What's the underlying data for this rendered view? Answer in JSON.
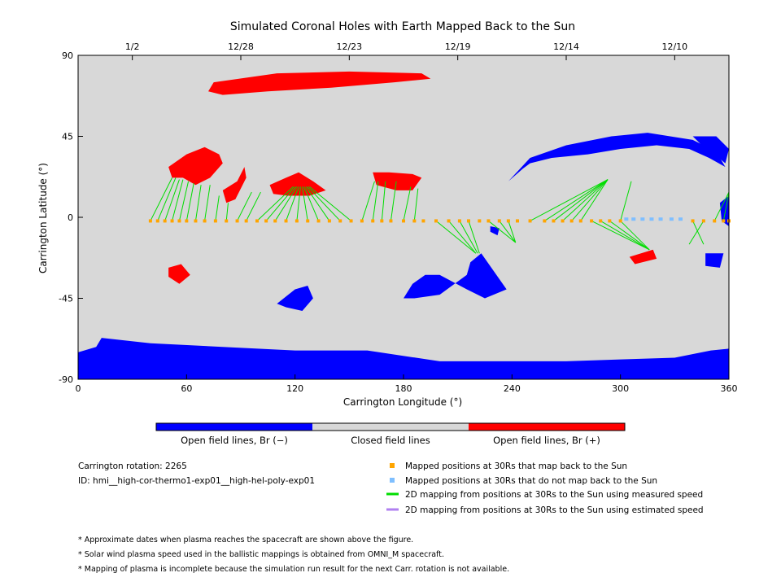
{
  "chart_data": {
    "type": "map",
    "title": "Simulated Coronal Holes with Earth Mapped Back to the Sun",
    "xlabel": "Carrington Longitude (°)",
    "ylabel": "Carrington Latitude (°)",
    "xlim": [
      0,
      360
    ],
    "ylim": [
      -90,
      90
    ],
    "x_ticks": [
      0,
      60,
      120,
      180,
      240,
      300,
      360
    ],
    "y_ticks": [
      -90,
      -45,
      0,
      45,
      90
    ],
    "top_axis_dates": [
      {
        "label": "1/2",
        "lon": 30
      },
      {
        "label": "12/28",
        "lon": 90
      },
      {
        "label": "12/23",
        "lon": 150
      },
      {
        "label": "12/19",
        "lon": 210
      },
      {
        "label": "12/14",
        "lon": 270
      },
      {
        "label": "12/10",
        "lon": 330
      }
    ],
    "colors": {
      "open_negative": "#0000ff",
      "closed": "#d8d8d8",
      "open_positive": "#ff0000",
      "mapped": "#ffa500",
      "not_mapped": "#7fbfff",
      "measured": "#00dd00",
      "estimated": "#b080f0"
    },
    "colorbar_labels": [
      "Open field lines, Br (−)",
      "Closed field lines",
      "Open field lines, Br (+)"
    ],
    "regions": {
      "positive": [
        [
          [
            75,
            75
          ],
          [
            110,
            80
          ],
          [
            150,
            81
          ],
          [
            190,
            80
          ],
          [
            195,
            77
          ],
          [
            175,
            75
          ],
          [
            140,
            72
          ],
          [
            105,
            70
          ],
          [
            80,
            68
          ],
          [
            72,
            70
          ]
        ],
        [
          [
            50,
            28
          ],
          [
            60,
            35
          ],
          [
            70,
            39
          ],
          [
            78,
            35
          ],
          [
            80,
            30
          ],
          [
            73,
            22
          ],
          [
            65,
            18
          ],
          [
            58,
            22
          ],
          [
            52,
            22
          ]
        ],
        [
          [
            80,
            15
          ],
          [
            88,
            20
          ],
          [
            92,
            28
          ],
          [
            93,
            22
          ],
          [
            87,
            10
          ],
          [
            82,
            8
          ]
        ],
        [
          [
            106,
            18
          ],
          [
            115,
            22
          ],
          [
            122,
            25
          ],
          [
            130,
            20
          ],
          [
            137,
            15
          ],
          [
            128,
            12
          ],
          [
            116,
            12
          ],
          [
            108,
            13
          ]
        ],
        [
          [
            163,
            25
          ],
          [
            172,
            25
          ],
          [
            185,
            24
          ],
          [
            190,
            22
          ],
          [
            185,
            15
          ],
          [
            176,
            15
          ],
          [
            165,
            18
          ]
        ],
        [
          [
            50,
            -28
          ],
          [
            57,
            -26
          ],
          [
            62,
            -32
          ],
          [
            56,
            -37
          ],
          [
            50,
            -33
          ]
        ],
        [
          [
            305,
            -22
          ],
          [
            318,
            -18
          ],
          [
            320,
            -23
          ],
          [
            308,
            -26
          ]
        ]
      ],
      "negative": [
        [
          [
            0,
            -75
          ],
          [
            10,
            -72
          ],
          [
            13,
            -67
          ],
          [
            40,
            -70
          ],
          [
            80,
            -72
          ],
          [
            120,
            -74
          ],
          [
            160,
            -74
          ],
          [
            200,
            -80
          ],
          [
            240,
            -80
          ],
          [
            270,
            -80
          ],
          [
            300,
            -79
          ],
          [
            330,
            -78
          ],
          [
            350,
            -74
          ],
          [
            360,
            -73
          ],
          [
            360,
            -90
          ],
          [
            0,
            -90
          ]
        ],
        [
          [
            180,
            -45
          ],
          [
            185,
            -37
          ],
          [
            192,
            -32
          ],
          [
            200,
            -32
          ],
          [
            215,
            -40
          ],
          [
            225,
            -45
          ],
          [
            237,
            -40
          ],
          [
            223,
            -20
          ],
          [
            217,
            -25
          ],
          [
            215,
            -32
          ],
          [
            200,
            -43
          ],
          [
            186,
            -45
          ]
        ],
        [
          [
            120,
            -40
          ],
          [
            127,
            -38
          ],
          [
            130,
            -45
          ],
          [
            124,
            -52
          ],
          [
            115,
            -50
          ],
          [
            110,
            -48
          ]
        ],
        [
          [
            238,
            20
          ],
          [
            250,
            33
          ],
          [
            270,
            40
          ],
          [
            295,
            45
          ],
          [
            315,
            47
          ],
          [
            340,
            43
          ],
          [
            350,
            38
          ],
          [
            355,
            33
          ],
          [
            358,
            28
          ],
          [
            349,
            33
          ],
          [
            338,
            38
          ],
          [
            320,
            40
          ],
          [
            300,
            38
          ],
          [
            282,
            35
          ],
          [
            262,
            33
          ],
          [
            250,
            30
          ],
          [
            246,
            27
          ]
        ],
        [
          [
            340,
            45
          ],
          [
            353,
            45
          ],
          [
            360,
            38
          ],
          [
            358,
            30
          ],
          [
            352,
            35
          ],
          [
            345,
            40
          ]
        ],
        [
          [
            347,
            -20
          ],
          [
            357,
            -20
          ],
          [
            355,
            -28
          ],
          [
            347,
            -27
          ]
        ],
        [
          [
            355,
            8
          ],
          [
            360,
            12
          ],
          [
            360,
            -5
          ],
          [
            356,
            -2
          ]
        ],
        [
          [
            228,
            -5
          ],
          [
            233,
            -6
          ],
          [
            232,
            -10
          ],
          [
            228,
            -8
          ]
        ]
      ]
    },
    "mapped_points": {
      "lat": -2,
      "lon": [
        40,
        44,
        48,
        52,
        56,
        60,
        65,
        70,
        76,
        82,
        88,
        93,
        99,
        104,
        109,
        115,
        121,
        127,
        133,
        139,
        145,
        151,
        157,
        163,
        168,
        173,
        180,
        186,
        191,
        198,
        205,
        211,
        216,
        222,
        227,
        233,
        238,
        243,
        250,
        258,
        263,
        268,
        273,
        278,
        284,
        289,
        294,
        300,
        340,
        346,
        352,
        357,
        360
      ]
    },
    "unmapped_points": {
      "lat": -1,
      "lon": [
        303,
        307,
        312,
        317,
        322,
        328,
        333
      ]
    },
    "measured_speed_lines": [
      {
        "from": [
          40,
          -2
        ],
        "to": [
          52,
          22
        ]
      },
      {
        "from": [
          44,
          -2
        ],
        "to": [
          54,
          22
        ]
      },
      {
        "from": [
          48,
          -2
        ],
        "to": [
          56,
          21
        ]
      },
      {
        "from": [
          52,
          -2
        ],
        "to": [
          58,
          21
        ]
      },
      {
        "from": [
          56,
          -2
        ],
        "to": [
          61,
          20
        ]
      },
      {
        "from": [
          60,
          -2
        ],
        "to": [
          64,
          19
        ]
      },
      {
        "from": [
          65,
          -2
        ],
        "to": [
          68,
          18
        ]
      },
      {
        "from": [
          70,
          -2
        ],
        "to": [
          73,
          18
        ]
      },
      {
        "from": [
          76,
          -2
        ],
        "to": [
          78,
          12
        ]
      },
      {
        "from": [
          82,
          -2
        ],
        "to": [
          83,
          8
        ]
      },
      {
        "from": [
          88,
          -2
        ],
        "to": [
          96,
          14
        ]
      },
      {
        "from": [
          93,
          -2
        ],
        "to": [
          101,
          14
        ]
      },
      {
        "from": [
          99,
          -2
        ],
        "to": [
          119,
          17
        ]
      },
      {
        "from": [
          104,
          -2
        ],
        "to": [
          120,
          17
        ]
      },
      {
        "from": [
          109,
          -2
        ],
        "to": [
          121,
          17
        ]
      },
      {
        "from": [
          115,
          -2
        ],
        "to": [
          122,
          17
        ]
      },
      {
        "from": [
          121,
          -2
        ],
        "to": [
          123,
          17
        ]
      },
      {
        "from": [
          127,
          -2
        ],
        "to": [
          124,
          17
        ]
      },
      {
        "from": [
          133,
          -2
        ],
        "to": [
          125,
          17
        ]
      },
      {
        "from": [
          139,
          -2
        ],
        "to": [
          126,
          17
        ]
      },
      {
        "from": [
          145,
          -2
        ],
        "to": [
          127,
          17
        ]
      },
      {
        "from": [
          151,
          -2
        ],
        "to": [
          128,
          17
        ]
      },
      {
        "from": [
          157,
          -2
        ],
        "to": [
          164,
          20
        ]
      },
      {
        "from": [
          163,
          -2
        ],
        "to": [
          166,
          20
        ]
      },
      {
        "from": [
          168,
          -2
        ],
        "to": [
          170,
          20
        ]
      },
      {
        "from": [
          173,
          -2
        ],
        "to": [
          176,
          20
        ]
      },
      {
        "from": [
          180,
          -2
        ],
        "to": [
          184,
          17
        ]
      },
      {
        "from": [
          186,
          -2
        ],
        "to": [
          188,
          16
        ]
      },
      {
        "from": [
          198,
          -2
        ],
        "to": [
          220,
          -20
        ]
      },
      {
        "from": [
          205,
          -2
        ],
        "to": [
          220,
          -20
        ]
      },
      {
        "from": [
          211,
          -2
        ],
        "to": [
          221,
          -20
        ]
      },
      {
        "from": [
          216,
          -2
        ],
        "to": [
          222,
          -20
        ]
      },
      {
        "from": [
          227,
          -2
        ],
        "to": [
          242,
          -14
        ]
      },
      {
        "from": [
          233,
          -2
        ],
        "to": [
          242,
          -14
        ]
      },
      {
        "from": [
          238,
          -2
        ],
        "to": [
          242,
          -14
        ]
      },
      {
        "from": [
          250,
          -2
        ],
        "to": [
          293,
          21
        ]
      },
      {
        "from": [
          258,
          -2
        ],
        "to": [
          293,
          21
        ]
      },
      {
        "from": [
          263,
          -2
        ],
        "to": [
          293,
          21
        ]
      },
      {
        "from": [
          268,
          -2
        ],
        "to": [
          293,
          21
        ]
      },
      {
        "from": [
          273,
          -2
        ],
        "to": [
          293,
          21
        ]
      },
      {
        "from": [
          278,
          -2
        ],
        "to": [
          293,
          21
        ]
      },
      {
        "from": [
          284,
          -2
        ],
        "to": [
          316,
          -18
        ]
      },
      {
        "from": [
          289,
          -2
        ],
        "to": [
          316,
          -18
        ]
      },
      {
        "from": [
          294,
          -2
        ],
        "to": [
          316,
          -18
        ]
      },
      {
        "from": [
          300,
          -2
        ],
        "to": [
          316,
          -18
        ]
      },
      {
        "from": [
          300,
          -2
        ],
        "to": [
          306,
          20
        ]
      },
      {
        "from": [
          340,
          -2
        ],
        "to": [
          346,
          -15
        ]
      },
      {
        "from": [
          346,
          -2
        ],
        "to": [
          338,
          -15
        ]
      },
      {
        "from": [
          352,
          -2
        ],
        "to": [
          360,
          14
        ]
      },
      {
        "from": [
          357,
          -2
        ],
        "to": [
          360,
          14
        ]
      }
    ]
  },
  "legend": {
    "mapped": "Mapped positions at 30Rs that map back to the Sun",
    "not_mapped": "Mapped positions at 30Rs that do not map back to the Sun",
    "measured": "2D mapping from positions at 30Rs to the Sun using measured speed",
    "estimated": "2D mapping from positions at 30Rs to the Sun using estimated speed"
  },
  "info": {
    "rotation": "Carrington rotation: 2265",
    "id": "ID: hmi__high-cor-thermo1-exp01__high-hel-poly-exp01"
  },
  "notes": [
    "* Approximate dates when plasma reaches the spacecraft are shown above the figure.",
    "* Solar wind plasma speed used in the ballistic mappings is obtained from OMNI_M spacecraft.",
    "* Mapping of plasma is incomplete because the simulation run result for the next Carr. rotation is not available."
  ]
}
